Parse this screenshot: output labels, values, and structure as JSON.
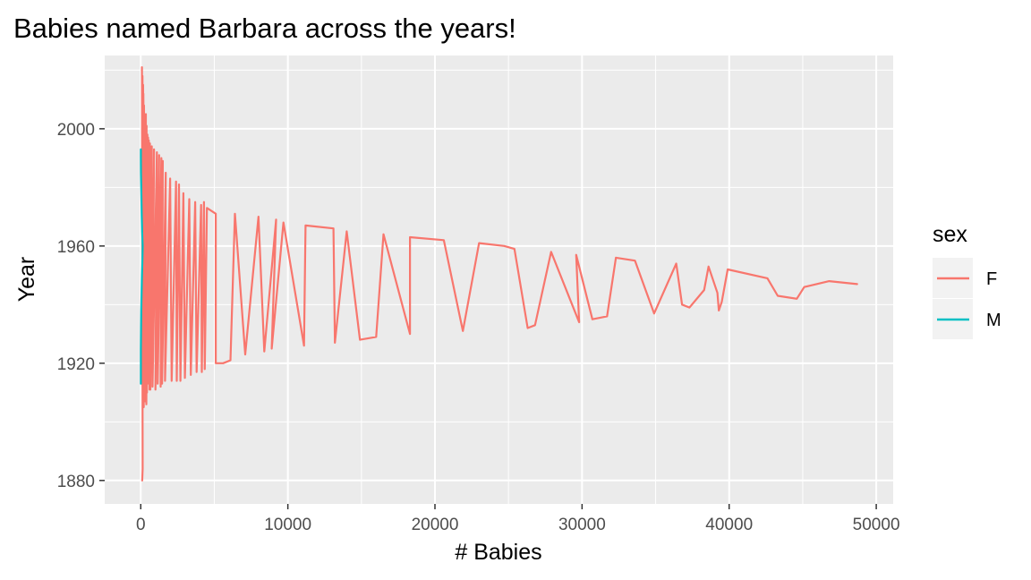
{
  "chart_data": {
    "type": "line",
    "title": "Babies named Barbara across the years!",
    "xlabel": "# Babies",
    "ylabel": "Year",
    "xlim": [
      -2450,
      51150
    ],
    "ylim": [
      1872,
      2025
    ],
    "x_ticks": [
      0,
      10000,
      20000,
      30000,
      40000,
      50000
    ],
    "x_tick_labels": [
      "0",
      "10000",
      "20000",
      "30000",
      "40000",
      "50000"
    ],
    "y_ticks": [
      1880,
      1920,
      1960,
      2000
    ],
    "y_tick_labels": [
      "1880",
      "1920",
      "1960",
      "2000"
    ],
    "grid": true,
    "legend": {
      "title": "sex",
      "position": "right",
      "entries": [
        {
          "label": "F",
          "color": "#F8766D"
        },
        {
          "label": "M",
          "color": "#00BFC4"
        }
      ]
    },
    "series": [
      {
        "name": "F",
        "color": "#F8766D",
        "x": [
          100,
          130,
          80,
          150,
          120,
          200,
          160,
          250,
          180,
          300,
          220,
          280,
          350,
          240,
          400,
          330,
          450,
          380,
          500,
          420,
          550,
          470,
          620,
          600,
          750,
          650,
          900,
          800,
          1100,
          1000,
          1250,
          1150,
          1400,
          1350,
          1500,
          1450,
          1700,
          1650,
          2000,
          2100,
          2400,
          2450,
          2600,
          2700,
          2900,
          3000,
          3300,
          3400,
          3700,
          3800,
          4100,
          4150,
          4300,
          4350,
          4500,
          5100,
          5100,
          5600,
          6100,
          6400,
          7100,
          8000,
          8400,
          9200,
          8900,
          9700,
          11100,
          11200,
          13100,
          13200,
          14000,
          14900,
          16000,
          16500,
          18300,
          18300,
          20600,
          21900,
          23000,
          24700,
          25400,
          26300,
          26800,
          27900,
          29800,
          29600,
          30700,
          31700,
          32300,
          33600,
          34900,
          36400,
          36800,
          37300,
          38300,
          38600,
          39200,
          39300,
          39500,
          39900,
          42600,
          43300,
          44600,
          45100,
          46800,
          48700
        ],
        "y": [
          1880,
          1884,
          2021,
          1910,
          2018,
          1905,
          2015,
          1908,
          2012,
          1907,
          2008,
          1912,
          2005,
          1909,
          2001,
          1913,
          1998,
          1906,
          1997,
          1910,
          1996,
          1913,
          1995,
          1911,
          1994,
          1911,
          1993,
          1912,
          1992,
          1911,
          1991,
          1913,
          1990,
          1912,
          1989,
          1913,
          1985,
          1914,
          1983,
          1914,
          1982,
          1914,
          1981,
          1914,
          1978,
          1915,
          1976,
          1916,
          1975,
          1917,
          1974,
          1917,
          1975,
          1918,
          1973,
          1971,
          1920,
          1920,
          1921,
          1971,
          1923,
          1970,
          1924,
          1969,
          1925,
          1968,
          1926,
          1967,
          1966,
          1927,
          1965,
          1928,
          1929,
          1964,
          1930,
          1963,
          1962,
          1931,
          1961,
          1960,
          1959,
          1932,
          1933,
          1958,
          1934,
          1957,
          1935,
          1936,
          1956,
          1955,
          1937,
          1954,
          1940,
          1939,
          1945,
          1953,
          1944,
          1938,
          1941,
          1952,
          1949,
          1943,
          1942,
          1946,
          1948,
          1947
        ]
      },
      {
        "name": "M",
        "color": "#00BFC4",
        "x": [
          5,
          8,
          20,
          35,
          60,
          80,
          110,
          130,
          95,
          70,
          50,
          30,
          15,
          10,
          5
        ],
        "y": [
          1913,
          1925,
          1932,
          1938,
          1945,
          1950,
          1955,
          1960,
          1965,
          1970,
          1975,
          1980,
          1985,
          1990,
          1993
        ]
      }
    ]
  }
}
